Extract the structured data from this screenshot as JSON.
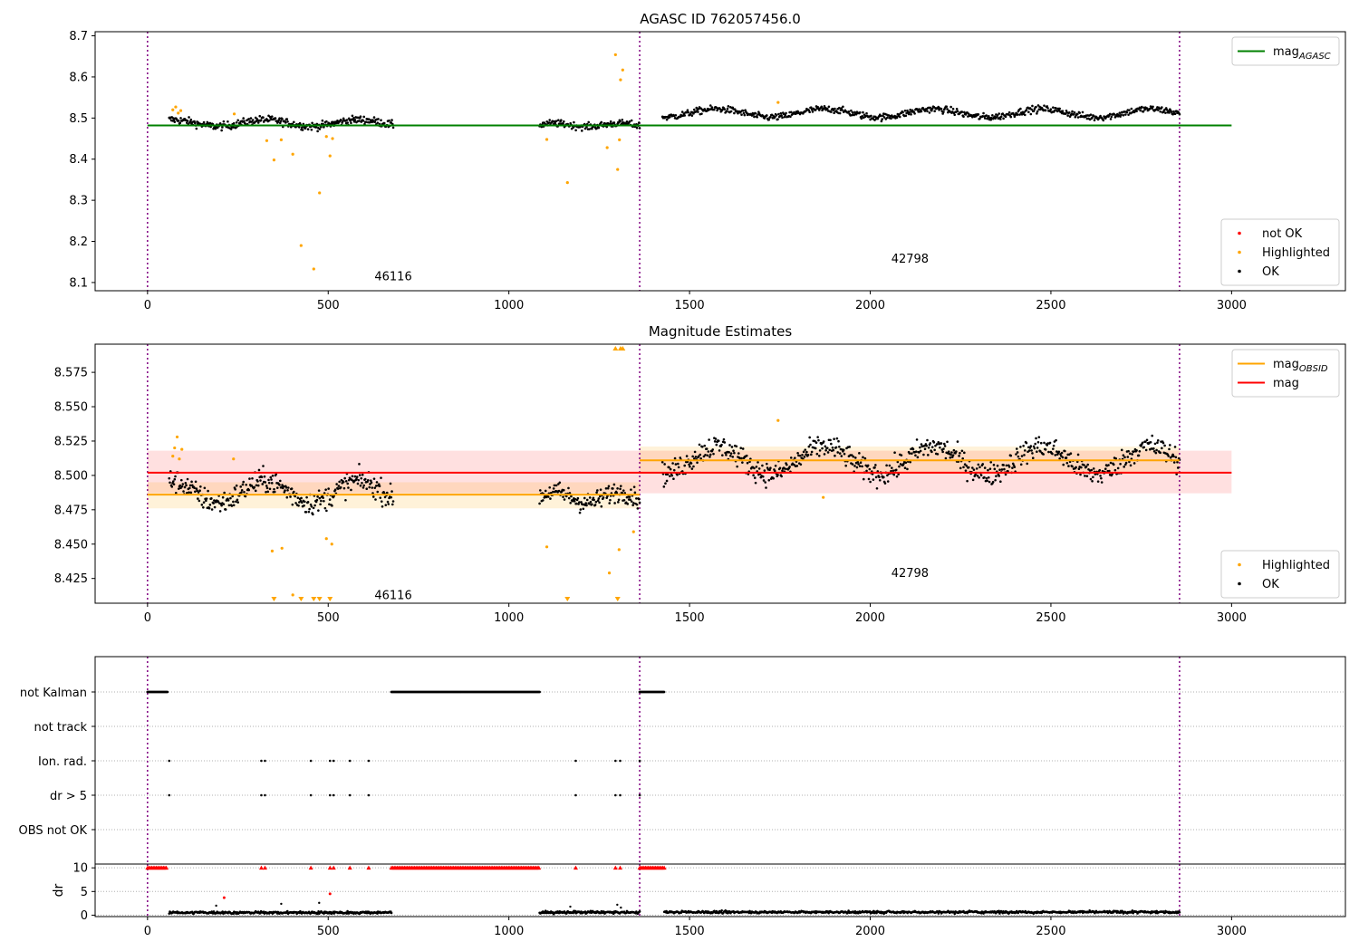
{
  "colors": {
    "ok": "#000000",
    "highlighted": "#ffa500",
    "not_ok": "#ff0000",
    "mag_agasc": "#008000",
    "mag_obsid": "#ffa500",
    "mag": "#ff0000",
    "obsid_boundary": "#800080",
    "grid": "#b0b0b0"
  },
  "chart_data": [
    {
      "id": "agasc",
      "type": "scatter",
      "title": "AGASC ID 762057456.0",
      "xlabel": "",
      "ylabel": "",
      "xlim": [
        -145,
        3315
      ],
      "ylim": [
        8.08,
        8.71
      ],
      "xticks": [
        0,
        500,
        1000,
        1500,
        2000,
        2500,
        3000
      ],
      "yticks": [
        8.1,
        8.2,
        8.3,
        8.4,
        8.5,
        8.6,
        8.7
      ],
      "ytick_decimals": 1,
      "obsid_boundaries": [
        0,
        1362,
        2856
      ],
      "obsid_labels": [
        {
          "text": "46116",
          "x": 680,
          "y": 8.105
        },
        {
          "text": "42798",
          "x": 2110,
          "y": 8.148
        }
      ],
      "lines": [
        {
          "name": "mag",
          "sub": "AGASC",
          "color": "#008000",
          "x": [
            0,
            3000
          ],
          "y": [
            8.482,
            8.482
          ]
        }
      ],
      "ok_segments": [
        {
          "x0": 60,
          "x1": 680,
          "base": 8.488,
          "spread": 0.008,
          "amp": 0.008,
          "period": 260,
          "n": 330
        },
        {
          "x0": 1085,
          "x1": 1362,
          "base": 8.483,
          "spread": 0.007,
          "amp": 0.004,
          "period": 180,
          "n": 150
        },
        {
          "x0": 1425,
          "x1": 2856,
          "base": 8.512,
          "spread": 0.007,
          "amp": 0.01,
          "period": 300,
          "n": 700
        }
      ],
      "highlighted": [
        {
          "x": 70,
          "y": 8.52
        },
        {
          "x": 78,
          "y": 8.527
        },
        {
          "x": 85,
          "y": 8.512
        },
        {
          "x": 92,
          "y": 8.518
        },
        {
          "x": 240,
          "y": 8.51
        },
        {
          "x": 330,
          "y": 8.445
        },
        {
          "x": 350,
          "y": 8.398
        },
        {
          "x": 370,
          "y": 8.447
        },
        {
          "x": 402,
          "y": 8.412
        },
        {
          "x": 425,
          "y": 8.19
        },
        {
          "x": 460,
          "y": 8.133
        },
        {
          "x": 476,
          "y": 8.318
        },
        {
          "x": 495,
          "y": 8.455
        },
        {
          "x": 505,
          "y": 8.408
        },
        {
          "x": 512,
          "y": 8.45
        },
        {
          "x": 1105,
          "y": 8.448
        },
        {
          "x": 1162,
          "y": 8.343
        },
        {
          "x": 1272,
          "y": 8.428
        },
        {
          "x": 1295,
          "y": 8.654
        },
        {
          "x": 1301,
          "y": 8.375
        },
        {
          "x": 1306,
          "y": 8.447
        },
        {
          "x": 1309,
          "y": 8.593
        },
        {
          "x": 1315,
          "y": 8.617
        },
        {
          "x": 1745,
          "y": 8.538
        }
      ],
      "legends": [
        {
          "position": "upper-right",
          "entries": [
            {
              "kind": "line",
              "color": "#008000",
              "label": "mag",
              "sub": "AGASC"
            }
          ]
        },
        {
          "position": "lower-right",
          "entries": [
            {
              "kind": "dot",
              "color": "#ff0000",
              "label": "not OK"
            },
            {
              "kind": "dot",
              "color": "#ffa500",
              "label": "Highlighted"
            },
            {
              "kind": "dot",
              "color": "#000000",
              "label": "OK"
            }
          ]
        }
      ]
    },
    {
      "id": "estimates",
      "type": "scatter",
      "title": "Magnitude Estimates",
      "xlabel": "",
      "ylabel": "",
      "xlim": [
        -145,
        3315
      ],
      "ylim": [
        8.407,
        8.5955
      ],
      "xticks": [
        0,
        500,
        1000,
        1500,
        2000,
        2500,
        3000
      ],
      "yticks": [
        8.425,
        8.45,
        8.475,
        8.5,
        8.525,
        8.55,
        8.575
      ],
      "ytick_decimals": 3,
      "obsid_boundaries": [
        0,
        1362,
        2856
      ],
      "obsid_labels": [
        {
          "text": "46116",
          "x": 680,
          "y": 8.41
        },
        {
          "text": "42798",
          "x": 2110,
          "y": 8.426
        }
      ],
      "bands": [
        {
          "x0": 0,
          "x1": 3000,
          "y0": 8.487,
          "y1": 8.518,
          "color": "#ff0000",
          "opacity": 0.12
        },
        {
          "x0": 0,
          "x1": 1362,
          "y0": 8.476,
          "y1": 8.495,
          "color": "#ffa500",
          "opacity": 0.15
        },
        {
          "x0": 1362,
          "x1": 2856,
          "y0": 8.501,
          "y1": 8.521,
          "color": "#ffa500",
          "opacity": 0.15
        }
      ],
      "lines": [
        {
          "name": "mag",
          "sub": "OBSID",
          "color": "#ffa500",
          "x": [
            0,
            1362
          ],
          "y": [
            8.486,
            8.486
          ]
        },
        {
          "name": "mag",
          "sub": "OBSID",
          "color": "#ffa500",
          "x": [
            1362,
            2856
          ],
          "y": [
            8.511,
            8.511
          ]
        },
        {
          "name": "mag",
          "sub": "",
          "color": "#ff0000",
          "x": [
            0,
            3000
          ],
          "y": [
            8.502,
            8.502
          ]
        }
      ],
      "ok_segments": [
        {
          "x0": 60,
          "x1": 680,
          "base": 8.488,
          "spread": 0.007,
          "amp": 0.008,
          "period": 260,
          "n": 330
        },
        {
          "x0": 1085,
          "x1": 1362,
          "base": 8.484,
          "spread": 0.006,
          "amp": 0.004,
          "period": 180,
          "n": 150
        },
        {
          "x0": 1425,
          "x1": 2856,
          "base": 8.511,
          "spread": 0.007,
          "amp": 0.01,
          "period": 300,
          "n": 700
        }
      ],
      "highlighted": [
        {
          "x": 70,
          "y": 8.514
        },
        {
          "x": 75,
          "y": 8.52
        },
        {
          "x": 82,
          "y": 8.528
        },
        {
          "x": 88,
          "y": 8.512
        },
        {
          "x": 95,
          "y": 8.519
        },
        {
          "x": 238,
          "y": 8.512
        },
        {
          "x": 345,
          "y": 8.445
        },
        {
          "x": 372,
          "y": 8.447
        },
        {
          "x": 402,
          "y": 8.413
        },
        {
          "x": 495,
          "y": 8.454
        },
        {
          "x": 510,
          "y": 8.45
        },
        {
          "x": 1105,
          "y": 8.448
        },
        {
          "x": 1278,
          "y": 8.429
        },
        {
          "x": 1305,
          "y": 8.446
        },
        {
          "x": 1345,
          "y": 8.459
        },
        {
          "x": 1745,
          "y": 8.54
        },
        {
          "x": 1870,
          "y": 8.484
        }
      ],
      "highlighted_offscale_bottom": [
        350,
        425,
        460,
        476,
        505,
        1162,
        1301
      ],
      "highlighted_offscale_top": [
        1295,
        1309,
        1315
      ],
      "legends": [
        {
          "position": "upper-right",
          "entries": [
            {
              "kind": "line",
              "color": "#ffa500",
              "label": "mag",
              "sub": "OBSID"
            },
            {
              "kind": "line",
              "color": "#ff0000",
              "label": "mag",
              "sub": ""
            }
          ]
        },
        {
          "position": "lower-right",
          "entries": [
            {
              "kind": "dot",
              "color": "#ffa500",
              "label": "Highlighted"
            },
            {
              "kind": "dot",
              "color": "#000000",
              "label": "OK"
            }
          ]
        }
      ]
    },
    {
      "id": "flags",
      "type": "scatter",
      "title": "",
      "xlim": [
        -145,
        3315
      ],
      "categories": [
        "not Kalman",
        "not track",
        "Ion. rad.",
        "dr > 5",
        "OBS not OK"
      ],
      "obsid_boundaries": [
        0,
        1362,
        2856
      ],
      "flag_ranges": [
        {
          "category": "not Kalman",
          "x0": 0,
          "x1": 55
        },
        {
          "category": "not Kalman",
          "x0": 675,
          "x1": 1085
        },
        {
          "category": "not Kalman",
          "x0": 1362,
          "x1": 1430
        }
      ],
      "flag_points": [
        {
          "category": "Ion. rad.",
          "x": [
            60,
            315,
            325,
            452,
            505,
            515,
            560,
            612,
            1185,
            1295,
            1308,
            1362
          ]
        },
        {
          "category": "dr > 5",
          "x": [
            60,
            315,
            325,
            452,
            505,
            515,
            560,
            612,
            1185,
            1295,
            1308,
            1362
          ]
        }
      ]
    },
    {
      "id": "dr",
      "type": "scatter",
      "title": "",
      "xlabel": "",
      "ylabel": "dr",
      "xlim": [
        -145,
        3315
      ],
      "ylim": [
        -0.3,
        10.8
      ],
      "xticks": [
        0,
        500,
        1000,
        1500,
        2000,
        2500,
        3000
      ],
      "yticks": [
        0,
        5,
        10
      ],
      "ytick_decimals": 0,
      "obsid_boundaries": [
        0,
        1362,
        2856
      ],
      "capped_value": 10,
      "capped_ranges": [
        {
          "x0": 0,
          "x1": 55
        },
        {
          "x0": 675,
          "x1": 1085
        },
        {
          "x0": 1362,
          "x1": 1430
        }
      ],
      "capped_points": [
        315,
        325,
        452,
        505,
        515,
        560,
        612,
        1185,
        1295,
        1308
      ],
      "ok_segments": [
        {
          "x0": 60,
          "x1": 675,
          "base": 0.55,
          "spread": 0.25,
          "amp": 0,
          "period": 100,
          "n": 330
        },
        {
          "x0": 1085,
          "x1": 1362,
          "base": 0.6,
          "spread": 0.25,
          "amp": 0,
          "period": 100,
          "n": 150
        },
        {
          "x0": 1430,
          "x1": 2856,
          "base": 0.65,
          "spread": 0.25,
          "amp": 0,
          "period": 100,
          "n": 700
        }
      ],
      "ok_outliers": [
        {
          "x": 190,
          "y": 2.0
        },
        {
          "x": 370,
          "y": 2.4
        },
        {
          "x": 475,
          "y": 2.6
        },
        {
          "x": 1170,
          "y": 1.8
        },
        {
          "x": 1300,
          "y": 2.2
        },
        {
          "x": 1310,
          "y": 1.6
        }
      ],
      "not_ok": [
        {
          "x": 212,
          "y": 3.7
        },
        {
          "x": 505,
          "y": 4.5
        }
      ]
    }
  ]
}
